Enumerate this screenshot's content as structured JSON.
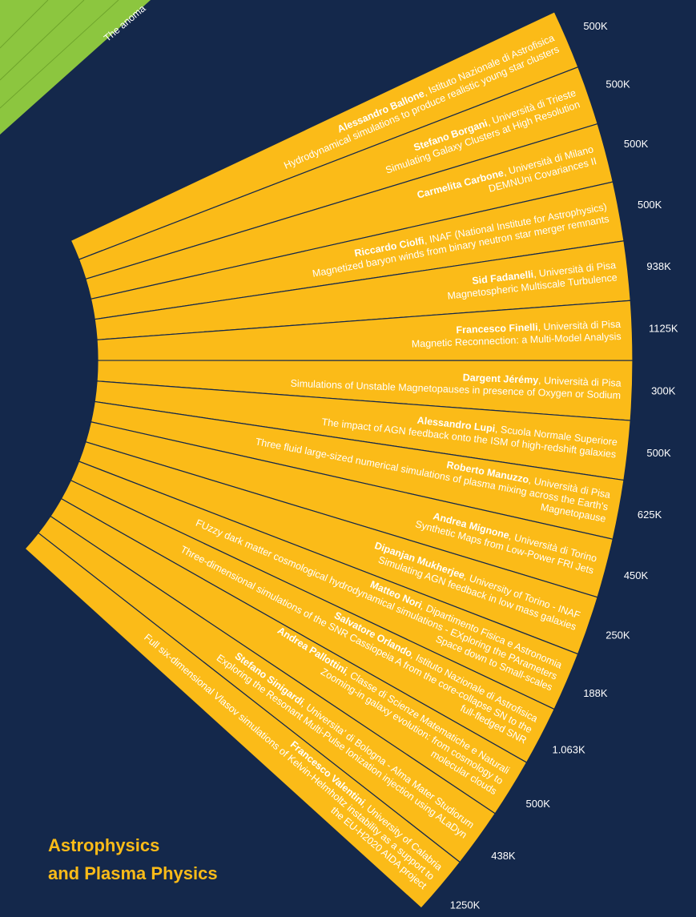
{
  "top_fragment": "The anoma",
  "section_title": [
    "Astrophysics",
    "and Plasma Physics"
  ],
  "projects": [
    {
      "name": "Alessandro Ballone",
      "affiliation": ", Istituto Nazionale di Astrofisica",
      "title": [
        "Hydrodynamical simulations to produce realistic young star clusters"
      ],
      "allocation": "500K"
    },
    {
      "name": "Stefano Borgani",
      "affiliation": ", Università di Trieste",
      "title": [
        "Simulating Galaxy Clusters at High Resolution"
      ],
      "allocation": "500K"
    },
    {
      "name": "Carmelita Carbone",
      "affiliation": ", Università di Milano",
      "title": [
        "DEMNUni Covariances II"
      ],
      "allocation": "500K"
    },
    {
      "name": "Riccardo Ciolfi",
      "affiliation": ", INAF (National Institute for Astrophysics)",
      "title": [
        "Magnetized baryon winds from binary neutron star merger remnants"
      ],
      "allocation": "500K"
    },
    {
      "name": "Sid Fadanelli",
      "affiliation": ", Università di Pisa",
      "title": [
        "Magnetospheric Multiscale Turbulence"
      ],
      "allocation": "938K"
    },
    {
      "name": "Francesco Finelli",
      "affiliation": ", Università di Pisa",
      "title": [
        "Magnetic Reconnection: a Multi-Model Analysis"
      ],
      "allocation": "1125K"
    },
    {
      "name": "Dargent Jérémy",
      "affiliation": ", Università di Pisa",
      "title": [
        "Simulations of Unstable Magnetopauses in presence of Oxygen or Sodium"
      ],
      "allocation": "300K"
    },
    {
      "name": "Alessandro Lupi",
      "affiliation": ", Scuola Normale Superiore",
      "title": [
        "The impact of AGN feedback onto the ISM of high-redshift galaxies"
      ],
      "allocation": "500K"
    },
    {
      "name": "Roberto Manuzzo",
      "affiliation": ", Università di Pisa",
      "title": [
        "Three fluid large-sized numerical simulations of plasma mixing across the Earth's",
        "Magnetopause"
      ],
      "allocation": "625K"
    },
    {
      "name": "Andrea Mignone",
      "affiliation": ", Università di Torino",
      "title": [
        "Synthetic Maps from Low-Power FRI Jets"
      ],
      "allocation": "450K"
    },
    {
      "name": "Dipanjan Mukherjee",
      "affiliation": ", University of Torino - INAF",
      "title": [
        "Simulating AGN feedback in low mass galaxies"
      ],
      "allocation": "250K"
    },
    {
      "name": "Matteo Nori",
      "affiliation": ", Dipartimento Fisica e Astronomia",
      "title": [
        "FUzzy dark matter cosmological hydrodynamical simulations - EXploring the PArameters",
        "Space down to Small-scales"
      ],
      "allocation": "188K"
    },
    {
      "name": "Salvatore Orlando",
      "affiliation": ", Istituto Nazionale di Astrofisica",
      "title": [
        "Three-dimensional simulations of the SNR Cassiopeia A from the core-collapse SN to the",
        "full-fledged SNR"
      ],
      "allocation": "1.063K"
    },
    {
      "name": "Andrea Pallottini",
      "affiliation": ", Classe di Scienze Matematiche e Naturali",
      "title": [
        "Zooming-in galaxy evolution: from cosmology to",
        "molecular clouds"
      ],
      "allocation": "500K"
    },
    {
      "name": "Stefano Sinigardi",
      "affiliation": ", Universita' di Bologna - Alma Mater Studiorum",
      "title": [
        "Exploring the Resonant Multi-Pulse Ionization injection using ALaDyn"
      ],
      "allocation": "438K"
    },
    {
      "name": "Francesco Valentini",
      "affiliation": ", University of Calabria",
      "title": [
        "Full six-dimensional Vlasov simulations of Kelvin-Helmholtz instability as a support to",
        "the EU-H2020 AIDA project"
      ],
      "allocation": "1250K"
    }
  ]
}
